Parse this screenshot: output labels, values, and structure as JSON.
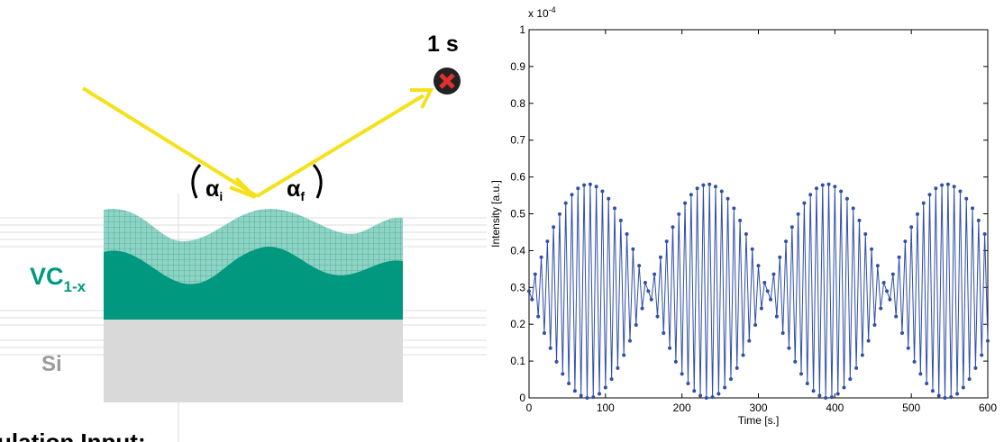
{
  "diagram": {
    "time_label": "1 s",
    "alpha_i": {
      "symbol": "α",
      "sub": "i"
    },
    "alpha_f": {
      "symbol": "α",
      "sub": "f"
    },
    "layer_top": {
      "text": "VC",
      "sub": "1-x"
    },
    "layer_bottom": "Si",
    "caption": "ulation Input:"
  },
  "chart_data": {
    "type": "line",
    "xlabel": "Time [s.]",
    "ylabel": "Intensity [a.u.]",
    "y_multiplier": {
      "base": "x 10",
      "exponent": "-4"
    },
    "xlim": [
      0,
      600
    ],
    "xticks": [
      0,
      100,
      200,
      300,
      400,
      500,
      600
    ],
    "ylim": [
      0,
      1
    ],
    "yticks": [
      0,
      0.1,
      0.2,
      0.3,
      0.4,
      0.5,
      0.6,
      0.7,
      0.8,
      0.9,
      1
    ],
    "grid": false,
    "series": [
      {
        "color": "#2f4fa8",
        "marker": "circle",
        "x": [
          0,
          4,
          8,
          12,
          16,
          20,
          24,
          28,
          32,
          36,
          40,
          44,
          48,
          52,
          56,
          60,
          64,
          68,
          72,
          76,
          80,
          84,
          88,
          92,
          96,
          100,
          104,
          108,
          112,
          116,
          120,
          124,
          128,
          132,
          136,
          140,
          144,
          148,
          152,
          156,
          160,
          164,
          168,
          172,
          176,
          180,
          184,
          188,
          192,
          196,
          200,
          204,
          208,
          212,
          216,
          220,
          224,
          228,
          232,
          236,
          240,
          244,
          248,
          252,
          256,
          260,
          264,
          268,
          272,
          276,
          280,
          284,
          288,
          292,
          296,
          300,
          304,
          308,
          312,
          316,
          320,
          324,
          328,
          332,
          336,
          340,
          344,
          348,
          352,
          356,
          360,
          364,
          368,
          372,
          376,
          380,
          384,
          388,
          392,
          396,
          400,
          404,
          408,
          412,
          416,
          420,
          424,
          428,
          432,
          436,
          440,
          444,
          448,
          452,
          456,
          460,
          464,
          468,
          472,
          476,
          480,
          484,
          488,
          492,
          496,
          500,
          504,
          508,
          512,
          516,
          520,
          524,
          528,
          532,
          536,
          540,
          544,
          548,
          552,
          556,
          560,
          564,
          568,
          572,
          576,
          580,
          584,
          588,
          592,
          596,
          600
        ],
        "values": [
          0.29,
          0.267,
          0.336,
          0.221,
          0.382,
          0.176,
          0.425,
          0.135,
          0.464,
          0.098,
          0.499,
          0.065,
          0.529,
          0.039,
          0.552,
          0.019,
          0.569,
          0.006,
          0.578,
          0.0,
          0.58,
          0.002,
          0.574,
          0.011,
          0.561,
          0.028,
          0.541,
          0.051,
          0.515,
          0.081,
          0.482,
          0.116,
          0.445,
          0.155,
          0.404,
          0.198,
          0.359,
          0.243,
          0.313,
          0.29,
          0.267,
          0.336,
          0.221,
          0.382,
          0.176,
          0.425,
          0.135,
          0.464,
          0.098,
          0.499,
          0.065,
          0.529,
          0.039,
          0.552,
          0.019,
          0.569,
          0.006,
          0.578,
          0.0,
          0.58,
          0.002,
          0.574,
          0.011,
          0.561,
          0.028,
          0.541,
          0.051,
          0.515,
          0.081,
          0.482,
          0.116,
          0.445,
          0.155,
          0.404,
          0.198,
          0.359,
          0.243,
          0.313,
          0.29,
          0.267,
          0.336,
          0.221,
          0.382,
          0.176,
          0.425,
          0.135,
          0.464,
          0.098,
          0.499,
          0.065,
          0.529,
          0.039,
          0.552,
          0.019,
          0.569,
          0.006,
          0.578,
          0.0,
          0.58,
          0.002,
          0.574,
          0.011,
          0.561,
          0.028,
          0.541,
          0.051,
          0.515,
          0.081,
          0.482,
          0.116,
          0.445,
          0.155,
          0.404,
          0.198,
          0.359,
          0.243,
          0.313,
          0.29,
          0.267,
          0.336,
          0.221,
          0.382,
          0.176,
          0.425,
          0.135,
          0.464,
          0.098,
          0.499,
          0.065,
          0.529,
          0.039,
          0.552,
          0.019,
          0.569,
          0.006,
          0.578,
          0.0,
          0.58,
          0.002,
          0.574,
          0.011,
          0.561,
          0.028,
          0.541,
          0.051,
          0.515,
          0.081,
          0.482,
          0.116,
          0.445,
          0.155
        ]
      }
    ]
  }
}
